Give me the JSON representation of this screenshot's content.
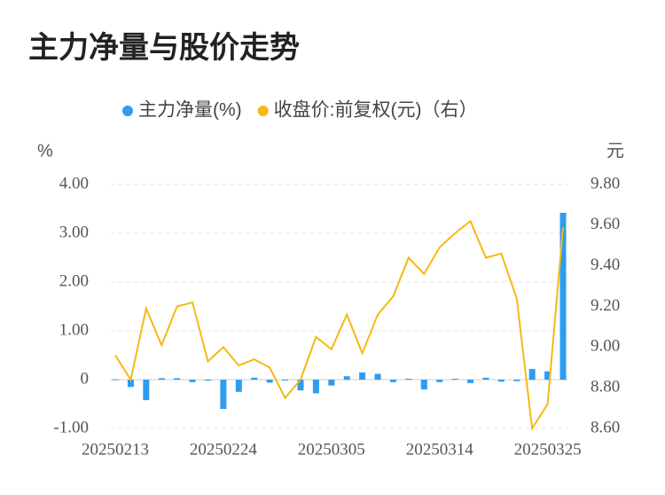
{
  "chart_data": {
    "type": "bar-line",
    "title": "主力净量与股价走势",
    "y_label": "%",
    "y2_label": "元",
    "categories": [
      "20250213",
      null,
      null,
      null,
      null,
      null,
      null,
      "20250224",
      null,
      null,
      null,
      null,
      null,
      null,
      "20250305",
      null,
      null,
      null,
      null,
      null,
      null,
      "20250314",
      null,
      null,
      null,
      null,
      null,
      null,
      "20250325",
      null
    ],
    "series": [
      {
        "name": "主力净量(%)",
        "color": "#2e9cf0",
        "kind": "bar",
        "axis": "y",
        "values": [
          0.01,
          -0.15,
          -0.42,
          0.03,
          0.03,
          -0.05,
          -0.02,
          -0.6,
          -0.25,
          0.04,
          -0.06,
          0,
          -0.22,
          -0.28,
          -0.12,
          0.07,
          0.15,
          0.12,
          -0.05,
          0.02,
          -0.2,
          -0.05,
          0.02,
          -0.07,
          0.04,
          -0.04,
          -0.03,
          0.22,
          0.17,
          3.42
        ]
      },
      {
        "name": "收盘价:前复权(元)（右）",
        "color": "#f5b914",
        "kind": "line",
        "axis": "y2",
        "values": [
          8.96,
          8.84,
          9.19,
          9.01,
          9.2,
          9.22,
          8.93,
          9.0,
          8.91,
          8.94,
          8.9,
          8.75,
          8.84,
          9.05,
          8.99,
          9.16,
          8.97,
          9.16,
          9.25,
          9.44,
          9.36,
          9.49,
          9.56,
          9.62,
          9.44,
          9.46,
          9.24,
          8.6,
          8.72,
          9.59
        ]
      }
    ],
    "ylim": [
      -1,
      4
    ],
    "yticks": [
      {
        "value": -1,
        "label": "-1.00"
      },
      0,
      {
        "value": 1,
        "label": "1.00"
      },
      {
        "value": 2,
        "label": "2.00"
      },
      {
        "value": 3,
        "label": "3.00"
      },
      {
        "value": 4,
        "label": "4.00"
      }
    ],
    "y2lim": [
      8.6,
      9.8
    ],
    "y2ticks": [
      {
        "value": 8.6,
        "label": "8.60"
      },
      {
        "value": 8.8,
        "label": "8.80"
      },
      {
        "value": 9.0,
        "label": "9.00"
      },
      {
        "value": 9.2,
        "label": "9.20"
      },
      {
        "value": 9.4,
        "label": "9.40"
      },
      {
        "value": 9.6,
        "label": "9.60"
      },
      {
        "value": 9.8,
        "label": "9.80"
      }
    ],
    "grid": true
  }
}
